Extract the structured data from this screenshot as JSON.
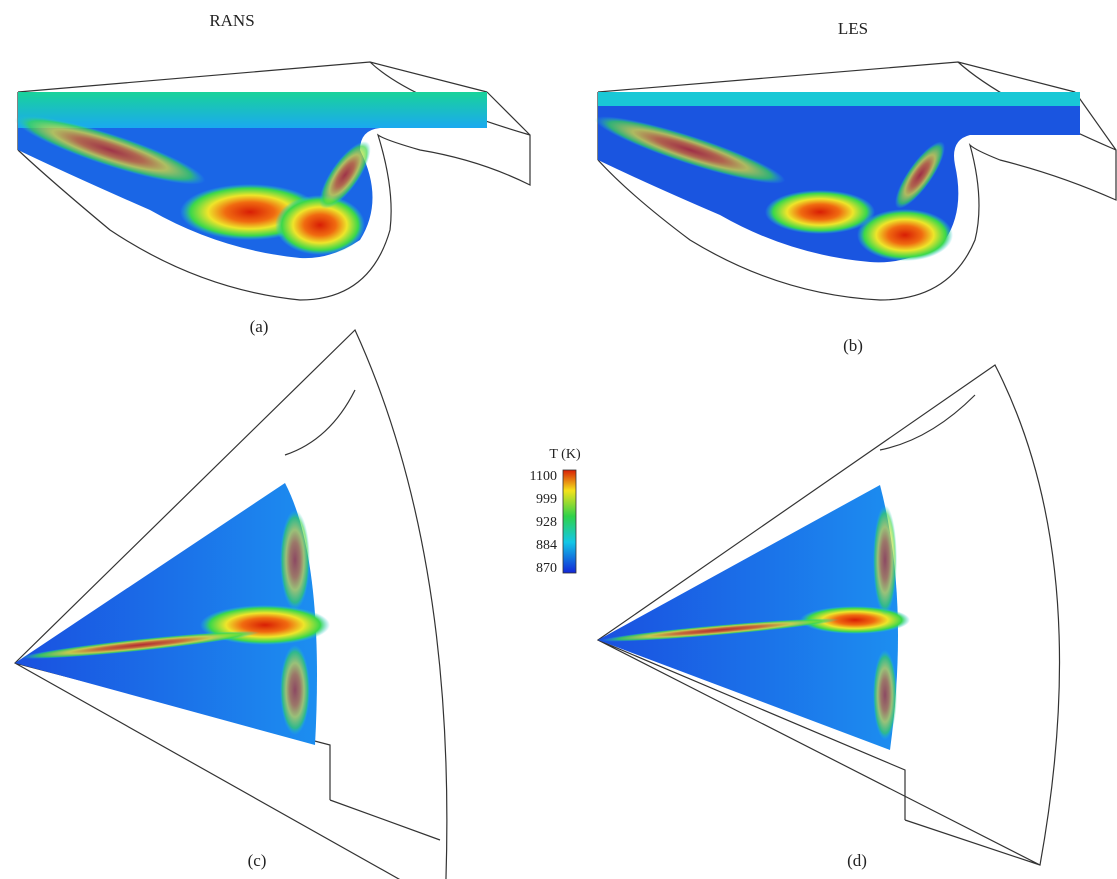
{
  "panels": [
    {
      "title": "RANS",
      "label": "(a)"
    },
    {
      "title": "LES",
      "label": "(b)"
    },
    {
      "label": "(c)"
    },
    {
      "label": "(d)"
    }
  ],
  "colorbar": {
    "title": "T (K)",
    "ticks": [
      1100,
      999,
      928,
      884,
      870
    ]
  }
}
